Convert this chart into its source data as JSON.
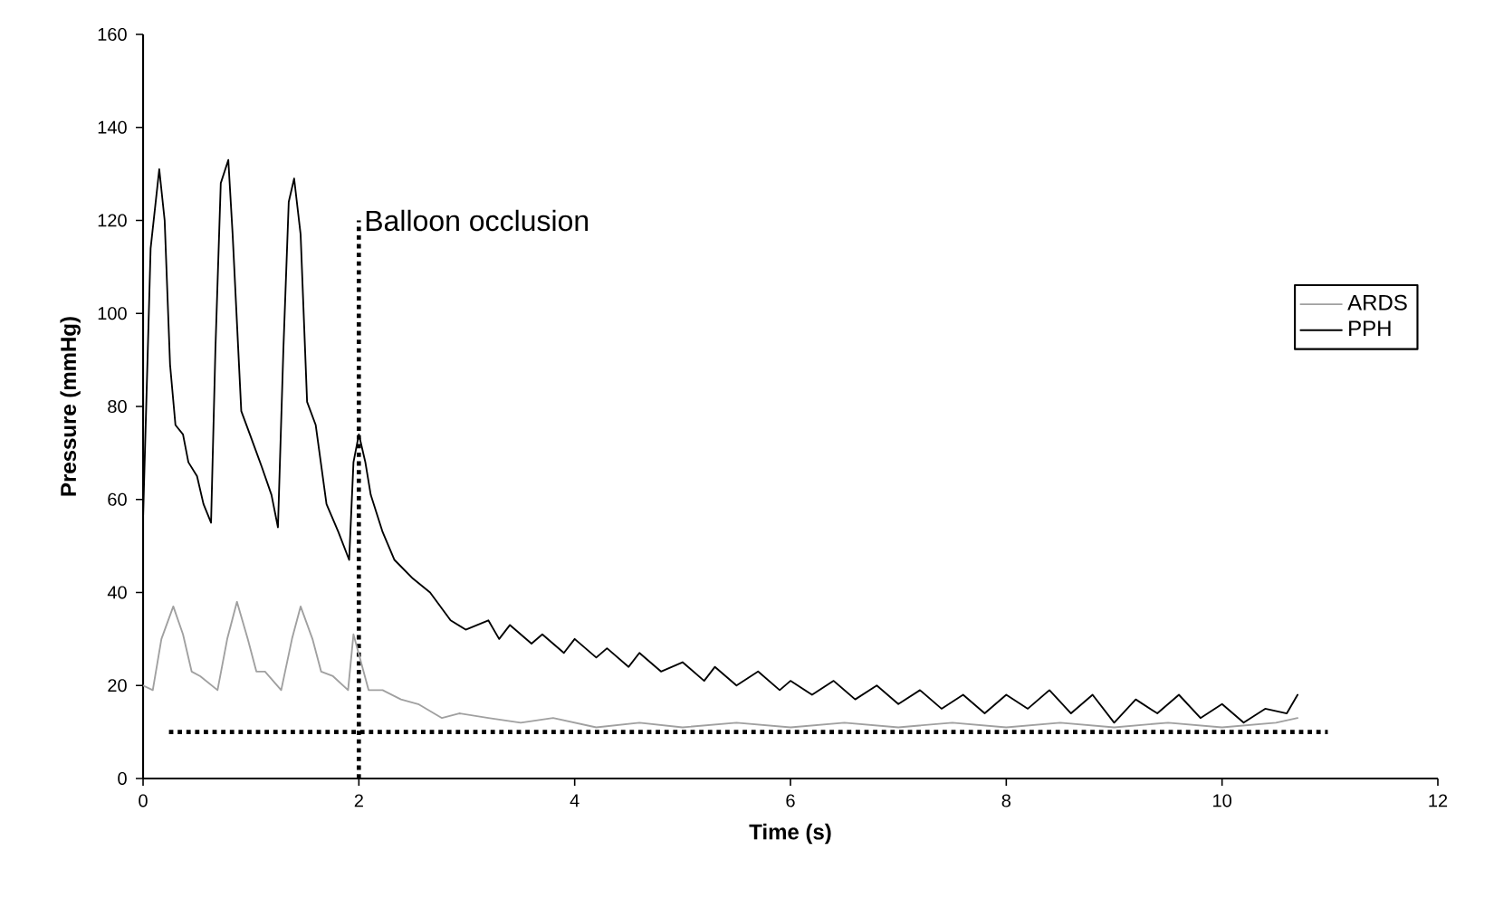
{
  "chart_data": {
    "type": "line",
    "xlabel": "Time (s)",
    "ylabel": "Pressure (mmHg)",
    "xlim": [
      0,
      12
    ],
    "ylim": [
      0,
      160
    ],
    "xticks": [
      0,
      2,
      4,
      6,
      8,
      10,
      12
    ],
    "yticks": [
      0,
      20,
      40,
      60,
      80,
      100,
      120,
      140,
      160
    ],
    "grid": false,
    "legend": "right",
    "marker": "none",
    "line_style": "solid",
    "ref_lines": [
      {
        "axis": "x",
        "value": 2,
        "label": "Balloon occlusion",
        "line_style": "dotted",
        "color": "#000000"
      },
      {
        "axis": "y",
        "value": 10,
        "line_style": "dotted",
        "color": "#000000"
      }
    ],
    "series": [
      {
        "name": "ARDS",
        "color": "#a0a0a0",
        "x": [
          0,
          0.09,
          0.17,
          0.28,
          0.37,
          0.45,
          0.53,
          0.69,
          0.78,
          0.87,
          0.97,
          1.05,
          1.13,
          1.28,
          1.38,
          1.46,
          1.57,
          1.65,
          1.76,
          1.9,
          1.95,
          2.09,
          2.22,
          2.39,
          2.55,
          2.77,
          2.93,
          3.2,
          3.5,
          3.8,
          4.2,
          4.6,
          5.0,
          5.5,
          6.0,
          6.5,
          7.0,
          7.5,
          8.0,
          8.5,
          9.0,
          9.5,
          10.0,
          10.5,
          10.7
        ],
        "values": [
          20,
          19,
          30,
          37,
          31,
          23,
          22,
          19,
          30,
          38,
          30,
          23,
          23,
          19,
          30,
          37,
          30,
          23,
          22,
          19,
          31,
          19,
          19,
          17,
          16,
          13,
          14,
          13,
          12,
          13,
          11,
          12,
          11,
          12,
          11,
          12,
          11,
          12,
          11,
          12,
          11,
          12,
          11,
          12,
          13
        ]
      },
      {
        "name": "PPH",
        "color": "#000000",
        "x": [
          0,
          0.04,
          0.07,
          0.15,
          0.2,
          0.25,
          0.3,
          0.37,
          0.42,
          0.5,
          0.56,
          0.63,
          0.67,
          0.72,
          0.79,
          0.83,
          0.91,
          0.99,
          1.1,
          1.19,
          1.25,
          1.3,
          1.35,
          1.4,
          1.46,
          1.52,
          1.6,
          1.7,
          1.81,
          1.91,
          1.95,
          2.0,
          2.06,
          2.11,
          2.22,
          2.33,
          2.5,
          2.66,
          2.85,
          2.99,
          3.2,
          3.3,
          3.4,
          3.6,
          3.7,
          3.9,
          4.0,
          4.2,
          4.3,
          4.5,
          4.6,
          4.8,
          5.0,
          5.2,
          5.3,
          5.5,
          5.7,
          5.9,
          6.0,
          6.2,
          6.4,
          6.6,
          6.8,
          7.0,
          7.2,
          7.4,
          7.6,
          7.8,
          8.0,
          8.2,
          8.4,
          8.6,
          8.8,
          9.0,
          9.2,
          9.4,
          9.6,
          9.8,
          10.0,
          10.2,
          10.4,
          10.6,
          10.7
        ],
        "values": [
          56,
          89,
          114,
          131,
          120,
          89,
          76,
          74,
          68,
          65,
          59,
          55,
          92,
          128,
          133,
          117,
          79,
          74,
          67,
          61,
          54,
          92,
          124,
          129,
          117,
          81,
          76,
          59,
          53,
          47,
          68,
          74,
          68,
          61,
          53,
          47,
          43,
          40,
          34,
          32,
          34,
          30,
          33,
          29,
          31,
          27,
          30,
          26,
          28,
          24,
          27,
          23,
          25,
          21,
          24,
          20,
          23,
          19,
          21,
          18,
          21,
          17,
          20,
          16,
          19,
          15,
          18,
          14,
          18,
          15,
          19,
          14,
          18,
          12,
          17,
          14,
          18,
          13,
          16,
          12,
          15,
          14,
          18
        ]
      }
    ]
  }
}
